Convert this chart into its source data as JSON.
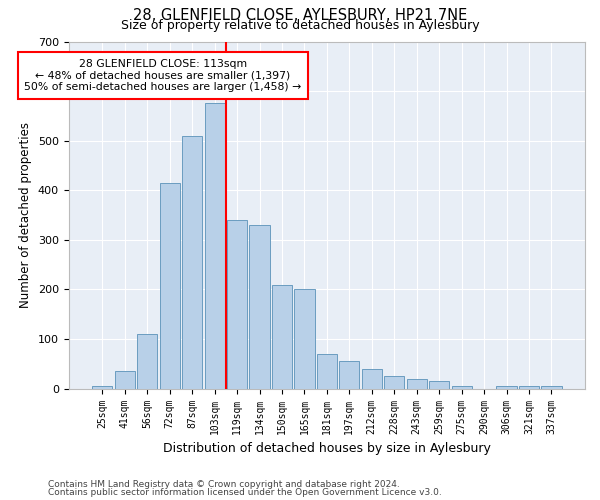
{
  "title1": "28, GLENFIELD CLOSE, AYLESBURY, HP21 7NE",
  "title2": "Size of property relative to detached houses in Aylesbury",
  "xlabel": "Distribution of detached houses by size in Aylesbury",
  "ylabel": "Number of detached properties",
  "categories": [
    "25sqm",
    "41sqm",
    "56sqm",
    "72sqm",
    "87sqm",
    "103sqm",
    "119sqm",
    "134sqm",
    "150sqm",
    "165sqm",
    "181sqm",
    "197sqm",
    "212sqm",
    "228sqm",
    "243sqm",
    "259sqm",
    "275sqm",
    "290sqm",
    "306sqm",
    "321sqm",
    "337sqm"
  ],
  "values": [
    5,
    35,
    110,
    415,
    510,
    575,
    340,
    330,
    210,
    200,
    70,
    55,
    40,
    25,
    20,
    15,
    5,
    0,
    5,
    5,
    5
  ],
  "bar_color": "#b8d0e8",
  "bar_edge_color": "#6a9cc0",
  "bg_color": "#e8eef6",
  "grid_color": "#ffffff",
  "vline_color": "red",
  "annotation_text": "28 GLENFIELD CLOSE: 113sqm\n← 48% of detached houses are smaller (1,397)\n50% of semi-detached houses are larger (1,458) →",
  "annotation_box_color": "white",
  "annotation_box_edge": "red",
  "ylim": [
    0,
    700
  ],
  "yticks": [
    0,
    100,
    200,
    300,
    400,
    500,
    600,
    700
  ],
  "footer1": "Contains HM Land Registry data © Crown copyright and database right 2024.",
  "footer2": "Contains public sector information licensed under the Open Government Licence v3.0."
}
